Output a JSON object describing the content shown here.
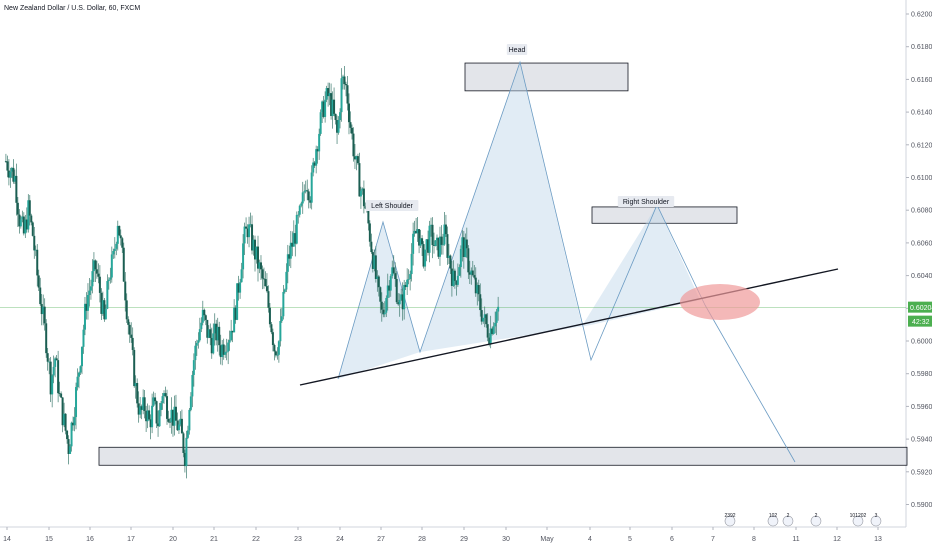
{
  "title": "New Zealand Dollar / U.S. Dollar, 60, FXCM",
  "chart_data": {
    "type": "candlestick",
    "symbol": "NZDUSD",
    "interval": "60",
    "source": "FXCM",
    "y_ticks": [
      "0.62000",
      "0.61800",
      "0.61600",
      "0.61400",
      "0.61200",
      "0.61000",
      "0.60800",
      "0.60600",
      "0.60400",
      "0.60200",
      "0.60000",
      "0.59800",
      "0.59600",
      "0.59400",
      "0.59200",
      "0.59000"
    ],
    "x_ticks": [
      "14",
      "15",
      "16",
      "17",
      "20",
      "21",
      "22",
      "23",
      "24",
      "27",
      "28",
      "29",
      "30",
      "May",
      "4",
      "5",
      "6",
      "7",
      "8",
      "11",
      "12",
      "13"
    ],
    "ylim": [
      0.5888,
      0.621
    ],
    "current_price": "0.60204",
    "countdown": "42:32",
    "close_path": [
      [
        0,
        0.611
      ],
      [
        2,
        0.61
      ],
      [
        3,
        0.6075
      ],
      [
        4,
        0.6065
      ],
      [
        5,
        0.608
      ],
      [
        6,
        0.6065
      ],
      [
        7,
        0.604
      ],
      [
        8,
        0.602
      ],
      [
        9,
        0.6
      ],
      [
        10,
        0.5975
      ],
      [
        11,
        0.599
      ],
      [
        12,
        0.5965
      ],
      [
        13,
        0.595
      ],
      [
        14,
        0.5935
      ],
      [
        15,
        0.5955
      ],
      [
        16,
        0.5975
      ],
      [
        17,
        0.6
      ],
      [
        18,
        0.6025
      ],
      [
        19,
        0.6035
      ],
      [
        20,
        0.6045
      ],
      [
        21,
        0.603
      ],
      [
        22,
        0.601
      ],
      [
        23,
        0.604
      ],
      [
        24,
        0.605
      ],
      [
        25,
        0.6075
      ],
      [
        26,
        0.605
      ],
      [
        27,
        0.602
      ],
      [
        28,
        0.5995
      ],
      [
        29,
        0.597
      ],
      [
        30,
        0.5955
      ],
      [
        31,
        0.596
      ],
      [
        32,
        0.595
      ],
      [
        33,
        0.596
      ],
      [
        34,
        0.595
      ],
      [
        35,
        0.597
      ],
      [
        36,
        0.596
      ],
      [
        37,
        0.5955
      ],
      [
        38,
        0.595
      ],
      [
        39,
        0.5945
      ],
      [
        40,
        0.593
      ],
      [
        41,
        0.5965
      ],
      [
        42,
        0.599
      ],
      [
        43,
        0.6005
      ],
      [
        44,
        0.6015
      ],
      [
        45,
        0.6005
      ],
      [
        46,
        0.6
      ],
      [
        47,
        0.6005
      ],
      [
        48,
        0.5995
      ],
      [
        49,
        0.6
      ],
      [
        50,
        0.6005
      ],
      [
        51,
        0.6015
      ],
      [
        52,
        0.6035
      ],
      [
        53,
        0.606
      ],
      [
        54,
        0.607
      ],
      [
        55,
        0.606
      ],
      [
        56,
        0.605
      ],
      [
        57,
        0.604
      ],
      [
        58,
        0.603
      ],
      [
        59,
        0.6015
      ],
      [
        60,
        0.5995
      ],
      [
        61,
        0.6
      ],
      [
        62,
        0.6025
      ],
      [
        63,
        0.605
      ],
      [
        64,
        0.606
      ],
      [
        65,
        0.607
      ],
      [
        66,
        0.608
      ],
      [
        67,
        0.61
      ],
      [
        68,
        0.609
      ],
      [
        69,
        0.6115
      ],
      [
        70,
        0.613
      ],
      [
        71,
        0.6145
      ],
      [
        72,
        0.615
      ],
      [
        73,
        0.614
      ],
      [
        74,
        0.6125
      ],
      [
        75,
        0.616
      ],
      [
        76,
        0.6155
      ],
      [
        77,
        0.613
      ],
      [
        78,
        0.611
      ],
      [
        79,
        0.6095
      ],
      [
        80,
        0.6085
      ],
      [
        81,
        0.607
      ],
      [
        82,
        0.605
      ],
      [
        83,
        0.603
      ],
      [
        84,
        0.6015
      ],
      [
        85,
        0.603
      ],
      [
        86,
        0.6045
      ],
      [
        87,
        0.6035
      ],
      [
        88,
        0.602
      ],
      [
        89,
        0.603
      ],
      [
        90,
        0.6045
      ],
      [
        91,
        0.606
      ],
      [
        92,
        0.607
      ],
      [
        93,
        0.605
      ],
      [
        94,
        0.606
      ],
      [
        95,
        0.6065
      ],
      [
        96,
        0.6055
      ],
      [
        97,
        0.606
      ],
      [
        98,
        0.6065
      ],
      [
        99,
        0.605
      ],
      [
        100,
        0.6035
      ],
      [
        101,
        0.6045
      ],
      [
        102,
        0.606
      ],
      [
        103,
        0.605
      ],
      [
        104,
        0.604
      ],
      [
        105,
        0.603
      ],
      [
        106,
        0.602
      ],
      [
        107,
        0.601
      ],
      [
        108,
        0.6005
      ],
      [
        109,
        0.6015
      ],
      [
        110,
        0.602
      ]
    ],
    "annotations": [
      "Head",
      "Left Shoulder",
      "Right Shoulder"
    ],
    "events": [
      "2392",
      "102",
      "2",
      "2",
      "101202",
      "3"
    ]
  },
  "colors": {
    "up": "#26a69a",
    "down": "#26a69a",
    "neckline": "#131722",
    "pattern_fill": "#bcd4e8",
    "pattern_line": "#6b9bc3",
    "zone_fill": "#d1d4dc",
    "zone_stroke": "#131722",
    "target_circle": "#ef9a9a",
    "price_line": "#4caf50",
    "price_tag": "#4caf50",
    "countdown_tag": "#4caf50"
  }
}
